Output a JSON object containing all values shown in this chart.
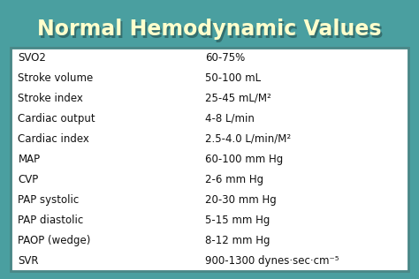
{
  "title": "Normal Hemodynamic Values",
  "title_color": "#FFFFCC",
  "title_fontsize": 17,
  "background_top_color": "#4a9fa0",
  "background_bottom_color": "#3a8a8a",
  "table_bg_color": "#ffffff",
  "table_border_color": "#4a8888",
  "row_labels": [
    "SVO2",
    "Stroke volume",
    "Stroke index",
    "Cardiac output",
    "Cardiac index",
    "MAP",
    "CVP",
    "PAP systolic",
    "PAP diastolic",
    "PAOP (wedge)",
    "SVR"
  ],
  "row_values": [
    "60-75%",
    "50-100 mL",
    "25-45 mL/M²",
    "4-8 L/min",
    "2.5-4.0 L/min/M²",
    "60-100 mm Hg",
    "2-6 mm Hg",
    "20-30 mm Hg",
    "5-15 mm Hg",
    "8-12 mm Hg",
    "900-1300 dynes·sec·cm⁻⁵"
  ],
  "row_color": "#ffffff",
  "cell_text_color": "#111111",
  "cell_fontsize": 8.5,
  "title_shadow_color": "#2a5a5a",
  "col_split": 0.47
}
